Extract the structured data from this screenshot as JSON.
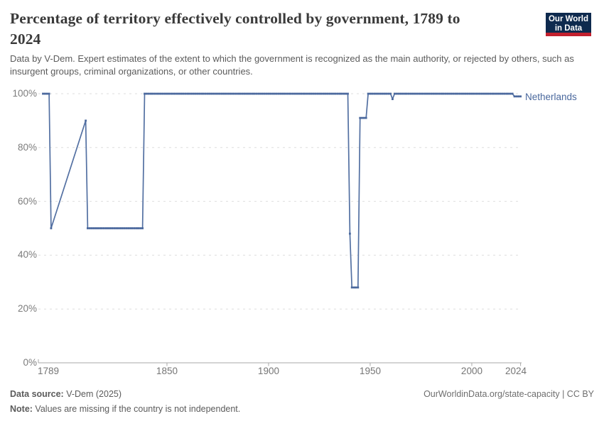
{
  "header": {
    "title_lines": [
      "Percentage of territory effectively controlled by government, 1789 to",
      "2024"
    ],
    "subtitle": "Data by V-Dem. Expert estimates of the extent to which the government is recognized as the main authority, or rejected by others, such as insurgent groups, criminal organizations, or other countries.",
    "logo": {
      "line1": "Our World",
      "line2": "in Data"
    }
  },
  "chart_data": {
    "type": "line",
    "title": "Percentage of territory effectively controlled by government, 1789 to 2024",
    "xlabel": "",
    "ylabel": "",
    "x_range": [
      1789,
      2024
    ],
    "y_range": [
      0,
      100
    ],
    "x_ticks": [
      1789,
      1850,
      1900,
      1950,
      2000,
      2024
    ],
    "y_ticks": [
      0,
      20,
      40,
      60,
      80,
      100
    ],
    "y_tick_suffix": "%",
    "grid": "horizontal-dashed",
    "legend_position": "right-of-line-end",
    "missing_years_interpolated": true,
    "series": [
      {
        "name": "Netherlands",
        "color": "#4A689D",
        "segments_year_start_end_value": [
          [
            1789,
            1792,
            100
          ],
          [
            1793,
            1793,
            50
          ],
          [
            1810,
            1810,
            90
          ],
          [
            1811,
            1838,
            50
          ],
          [
            1839,
            1939,
            100
          ],
          [
            1940,
            1940,
            48
          ],
          [
            1941,
            1944,
            28
          ],
          [
            1945,
            1948,
            91
          ],
          [
            1949,
            1960,
            100
          ],
          [
            1961,
            1961,
            98
          ],
          [
            1962,
            2020,
            100
          ],
          [
            2021,
            2024,
            99
          ]
        ]
      }
    ]
  },
  "footer": {
    "source_label": "Data source:",
    "source_value": " V-Dem (2025)",
    "note_label": "Note:",
    "note_value": " Values are missing if the country is not independent.",
    "link": "OurWorldinData.org/state-capacity | CC BY"
  },
  "colors": {
    "line": "#4A689D",
    "title_text": "#3a3a3a",
    "subtitle_text": "#5b5b5b",
    "axis_labels": "#7c7c7c",
    "gridline": "#dedede",
    "axis_line": "#a9a9a9",
    "logo_navy": "#0E2A4E",
    "logo_red": "#C2202E"
  }
}
